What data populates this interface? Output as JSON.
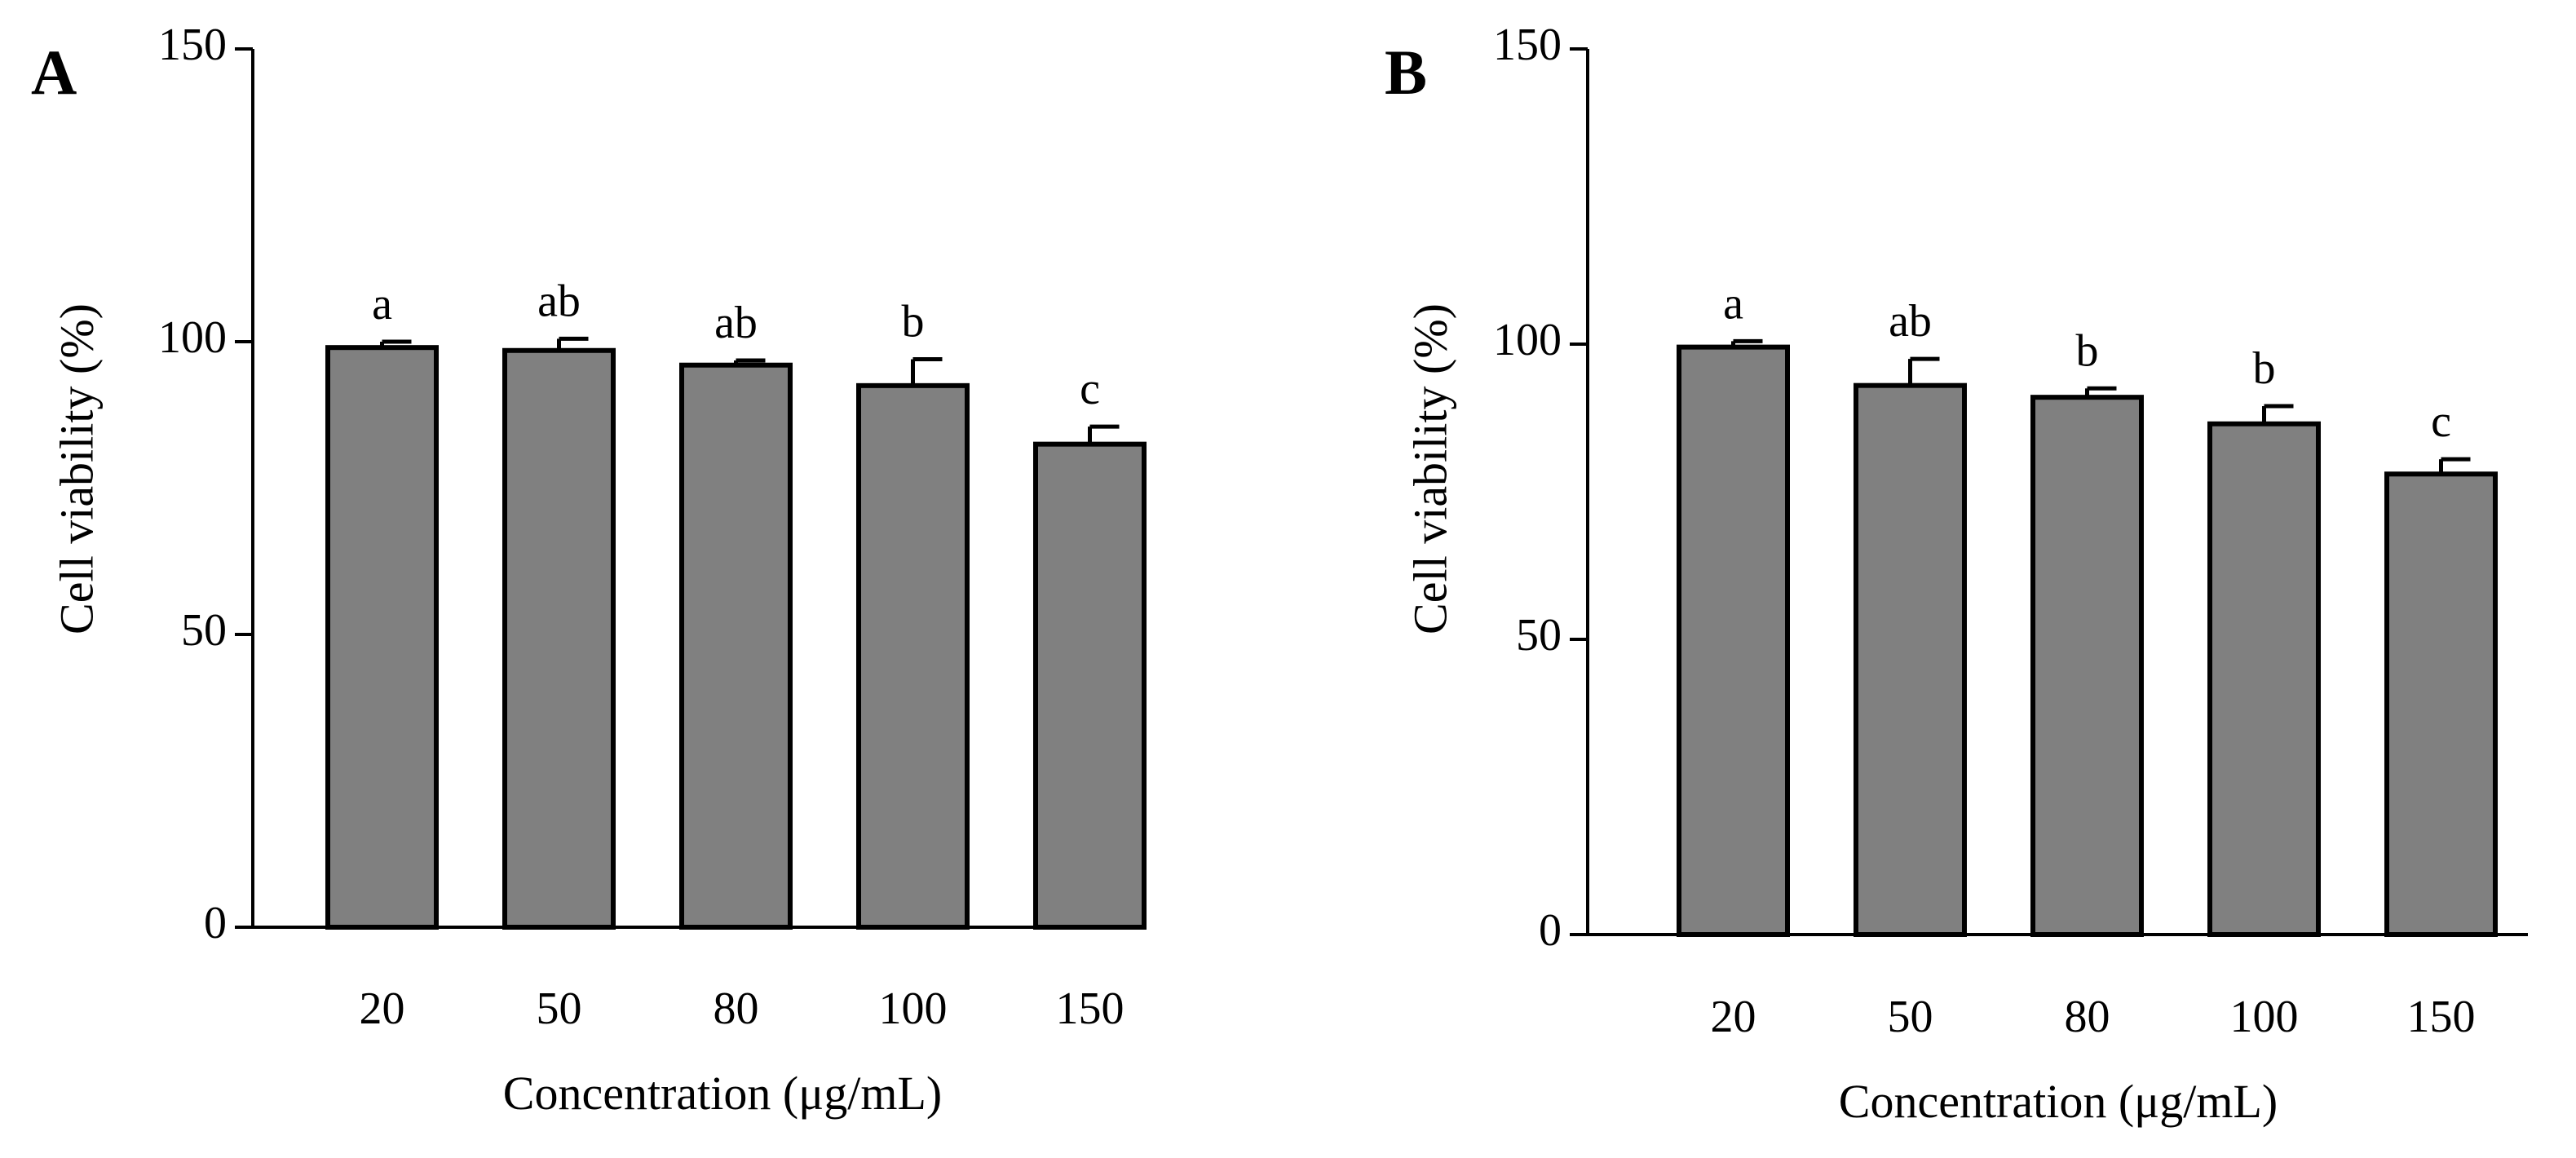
{
  "chart_data": [
    {
      "type": "bar",
      "panel_label": "A",
      "categories": [
        "20",
        "50",
        "80",
        "100",
        "150"
      ],
      "values": [
        99,
        98.5,
        96,
        92.5,
        82.5
      ],
      "errors": [
        1,
        2,
        0.8,
        4.5,
        3
      ],
      "significance_letters": [
        "a",
        "ab",
        "ab",
        "b",
        "c"
      ],
      "xlabel": "Concentration (μg/mL)",
      "ylabel": "Cell viability (%)",
      "ylim": [
        0,
        150
      ],
      "yticks": [
        "0",
        "50",
        "100",
        "150"
      ],
      "grid": false,
      "bar_color": "#808080"
    },
    {
      "type": "bar",
      "panel_label": "B",
      "categories": [
        "20",
        "50",
        "80",
        "100",
        "150"
      ],
      "values": [
        99.5,
        93,
        91,
        86.5,
        78
      ],
      "errors": [
        1,
        4.5,
        1.5,
        3,
        2.5
      ],
      "significance_letters": [
        "a",
        "ab",
        "b",
        "b",
        "c"
      ],
      "xlabel": "Concentration (μg/mL)",
      "ylabel": "Cell viability (%)",
      "ylim": [
        0,
        150
      ],
      "yticks": [
        "0",
        "50",
        "100",
        "150"
      ],
      "grid": false,
      "bar_color": "#808080"
    }
  ]
}
